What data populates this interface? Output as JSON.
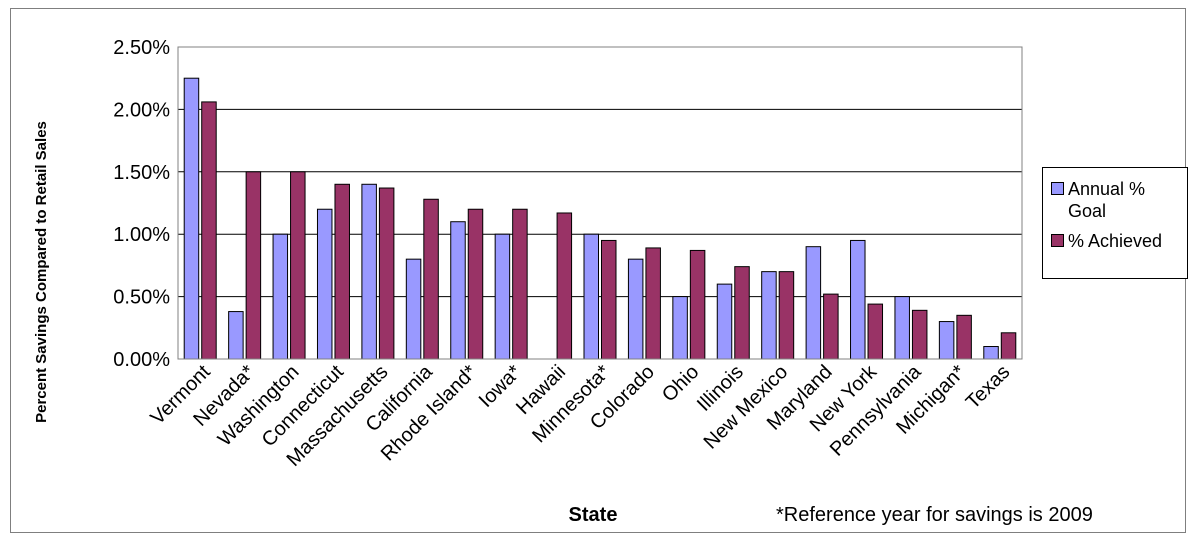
{
  "chart_data": {
    "type": "bar",
    "categories": [
      "Vermont",
      "Nevada*",
      "Washington",
      "Connecticut",
      "Massachusetts",
      "California",
      "Rhode Island*",
      "Iowa*",
      "Hawaii",
      "Minnesota*",
      "Colorado",
      "Ohio",
      "Illinois",
      "New Mexico",
      "Maryland",
      "New York",
      "Pennsylvania",
      "Michigan*",
      "Texas"
    ],
    "series": [
      {
        "name": "Annual % Goal",
        "color": "#9999ff",
        "values": [
          2.25,
          0.38,
          1.0,
          1.2,
          1.4,
          0.8,
          1.1,
          1.0,
          0,
          1.0,
          0.8,
          0.5,
          0.6,
          0.7,
          0.9,
          0.95,
          0.5,
          0.3,
          0.1
        ]
      },
      {
        "name": "% Achieved",
        "color": "#993366",
        "values": [
          2.06,
          1.5,
          1.5,
          1.4,
          1.37,
          1.28,
          1.2,
          1.2,
          1.17,
          0.95,
          0.89,
          0.87,
          0.74,
          0.7,
          0.52,
          0.44,
          0.39,
          0.35,
          0.21
        ]
      }
    ],
    "yticks": [
      "0.00%",
      "0.50%",
      "1.00%",
      "1.50%",
      "2.00%",
      "2.50%"
    ],
    "ylim": [
      0,
      2.5
    ],
    "xlabel": "State",
    "ylabel": "Percent Savings Compared to Retail Sales",
    "grid": true,
    "legend_position": "right",
    "annotation": "*Reference year for savings is 2009"
  }
}
